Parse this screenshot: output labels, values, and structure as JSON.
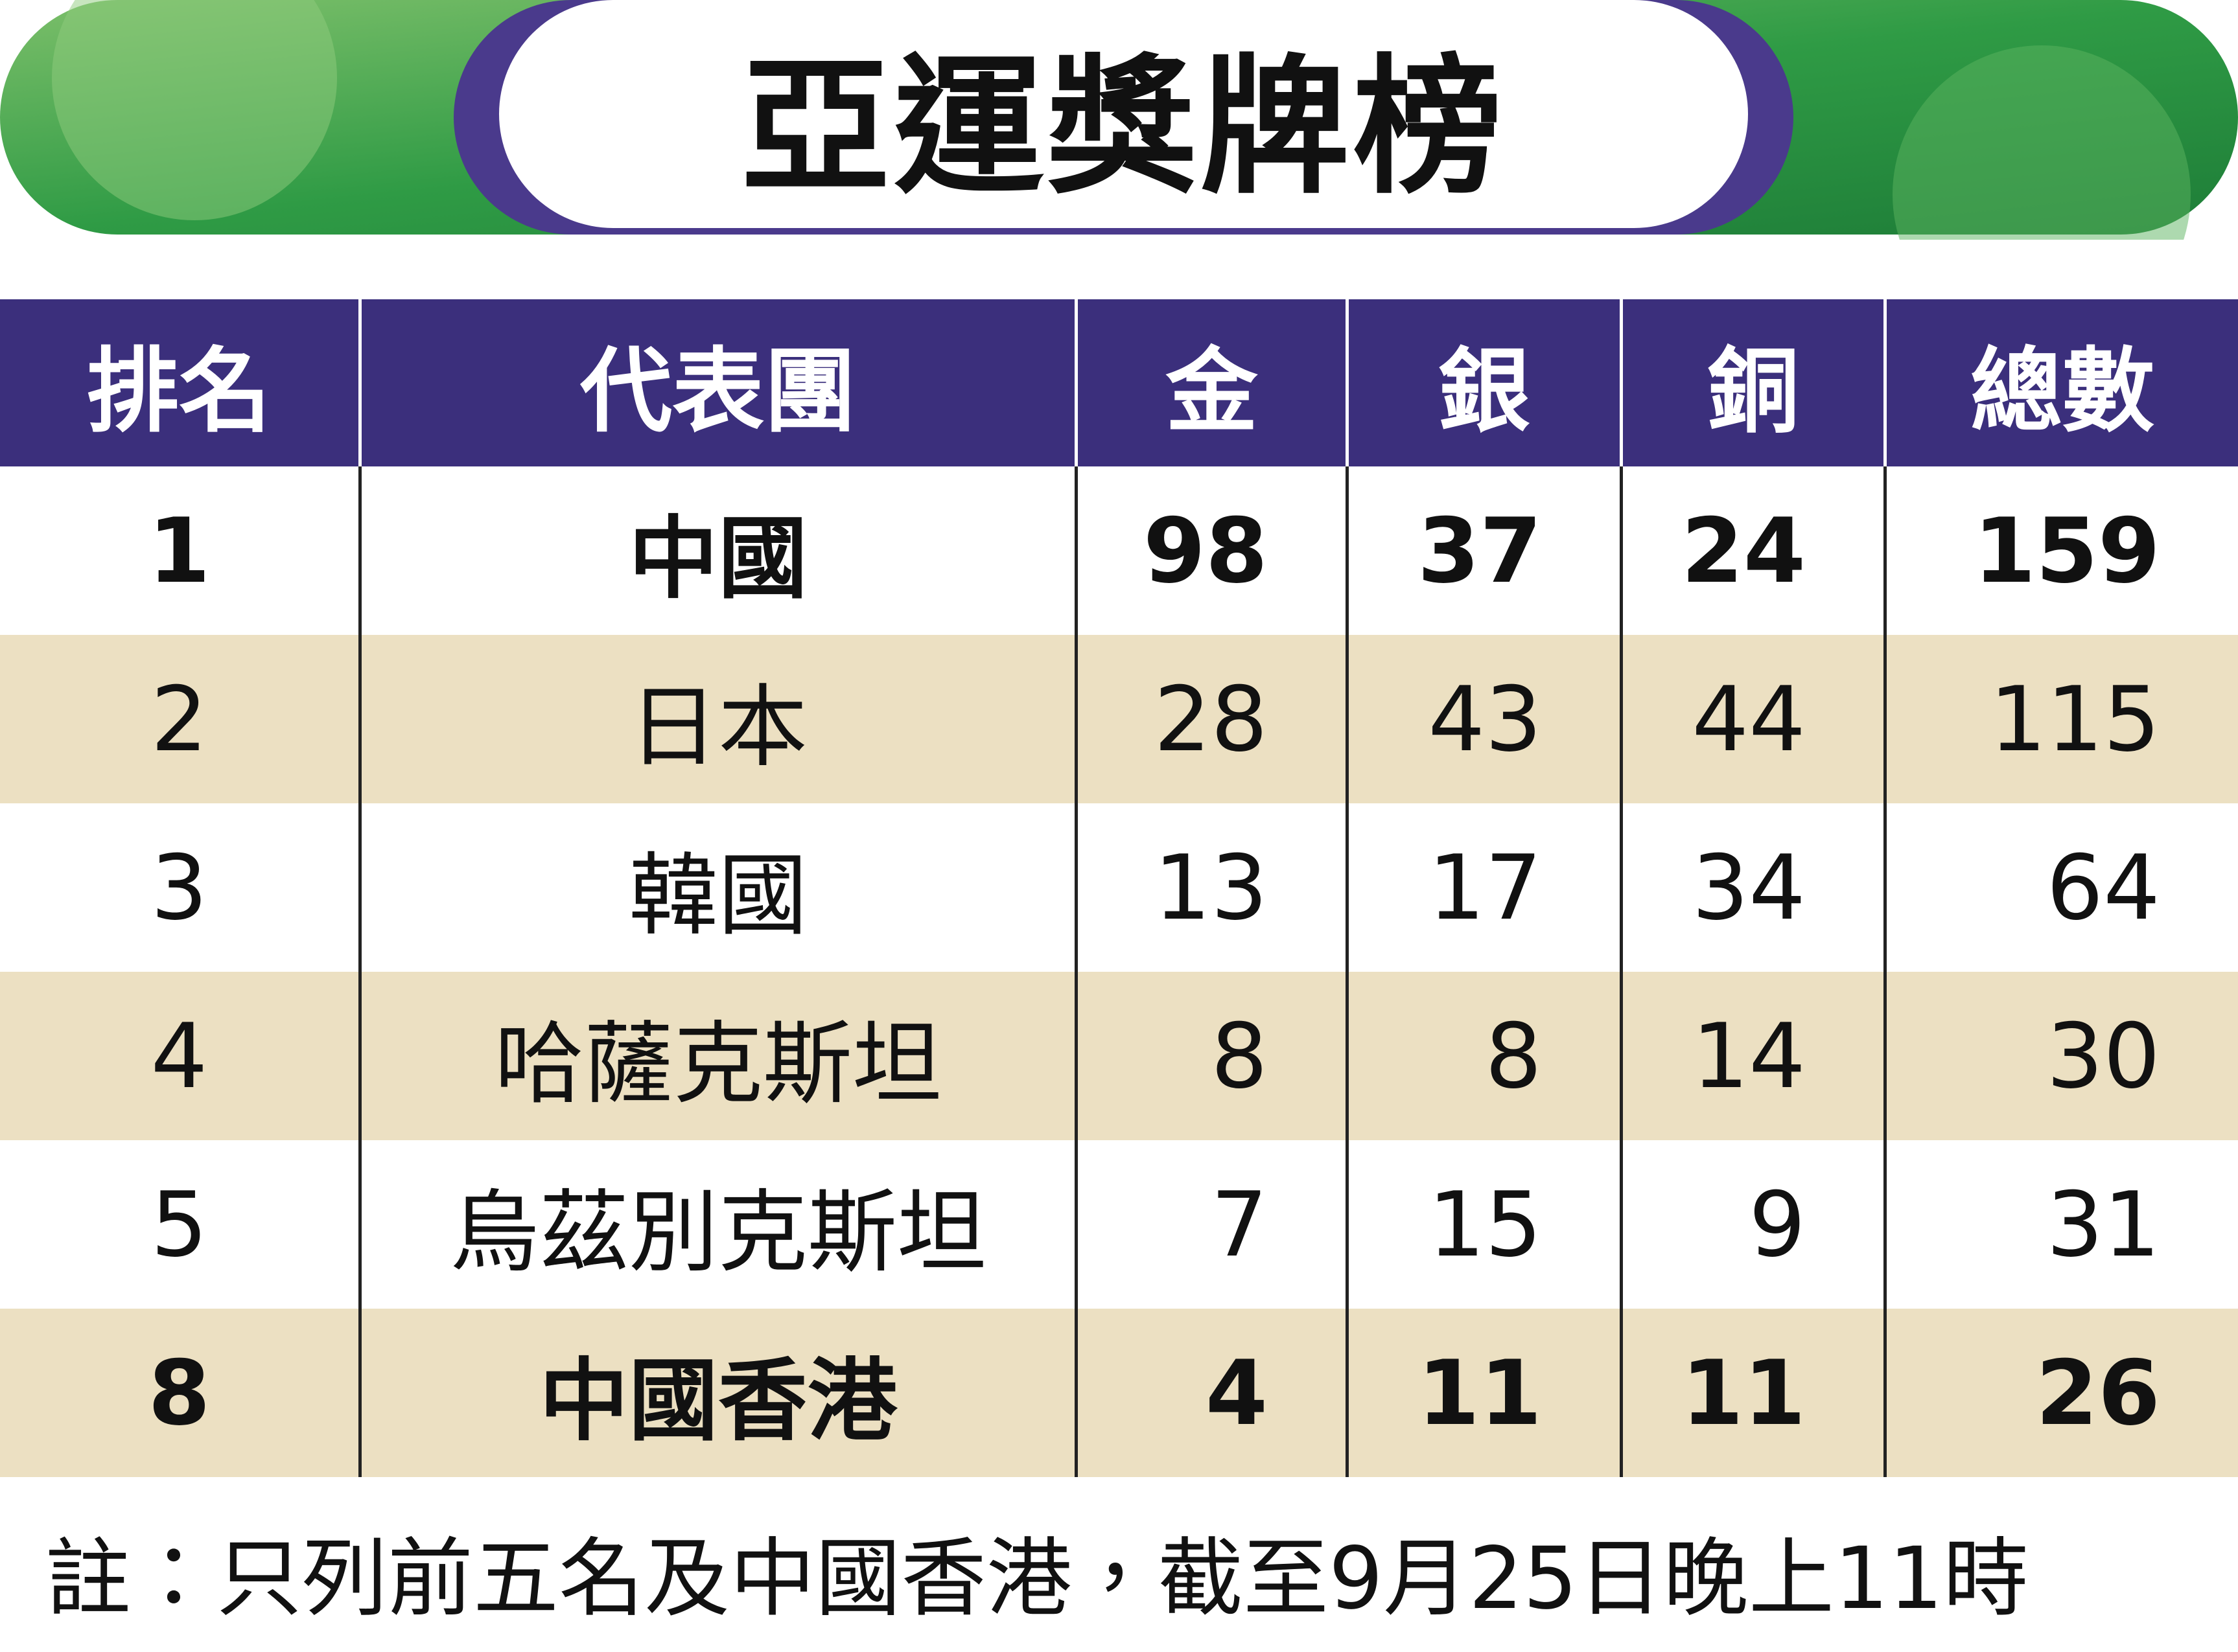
{
  "title": "亞運獎牌榜",
  "table": {
    "header": [
      "排名",
      "代表團",
      "金",
      "銀",
      "銅",
      "總數"
    ],
    "rows": [
      [
        1,
        "中國",
        98,
        37,
        24,
        159
      ],
      [
        2,
        "日本",
        28,
        43,
        44,
        115
      ],
      [
        3,
        "韓國",
        13,
        17,
        34,
        64
      ],
      [
        4,
        "哈薩克斯坦",
        8,
        8,
        14,
        30
      ],
      [
        5,
        "烏茲別克斯坦",
        7,
        15,
        9,
        31
      ],
      [
        8,
        "中國香港",
        4,
        11,
        11,
        26
      ]
    ]
  },
  "note": "註：只列前五名及中國香港，截至9月25日晚上11時"
}
